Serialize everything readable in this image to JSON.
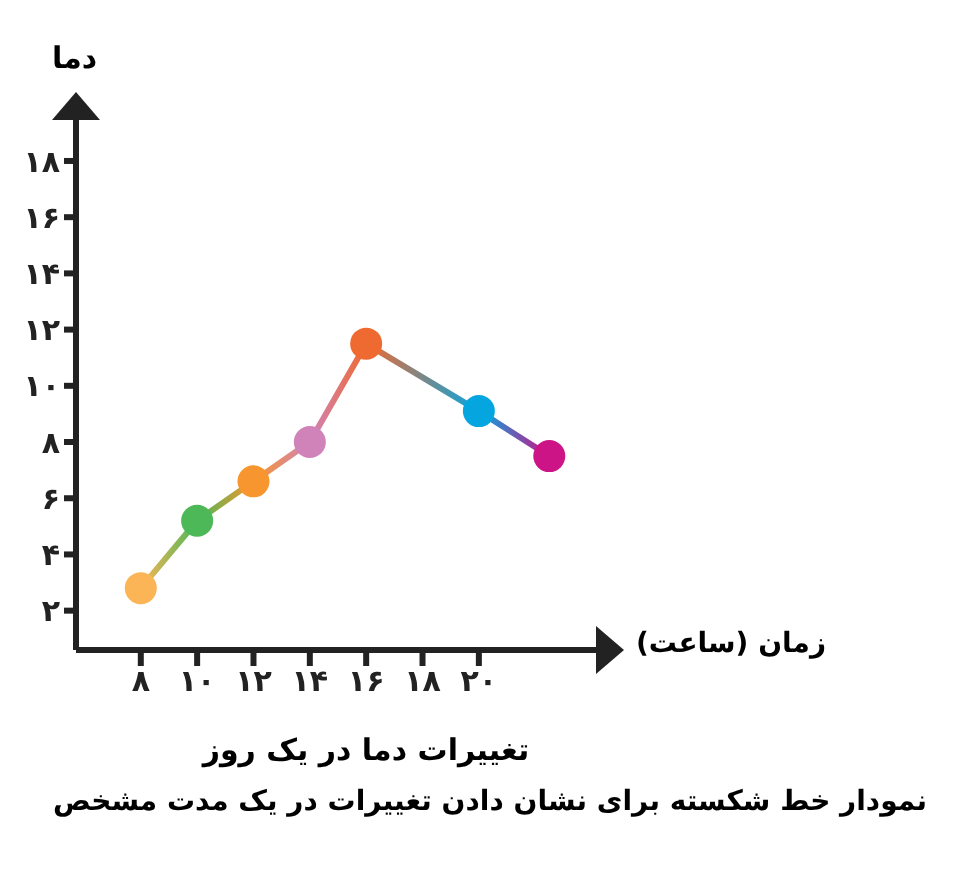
{
  "chart_data": {
    "type": "line",
    "title": "تغییرات دما در یک روز",
    "subtitle": "نمودار خط شکسته برای نشان دادن تغییرات در یک مدت مشخص",
    "xlabel": "زمان (ساعت)",
    "ylabel": "دما",
    "x": [
      8,
      10,
      12,
      14,
      16,
      20,
      22.5
    ],
    "series": [
      {
        "values": [
          2.8,
          5.2,
          6.6,
          8,
          11.5,
          9.1,
          7.5
        ],
        "colors": [
          "#fbb556",
          "#4cb857",
          "#f7962e",
          "#d083b8",
          "#ef6a30",
          "#05a6e0",
          "#cc1487"
        ]
      }
    ],
    "xlim": [
      5.7,
      24.3
    ],
    "xticks": [
      {
        "value": 8,
        "label": "۸"
      },
      {
        "value": 10,
        "label": "۱۰"
      },
      {
        "value": 12,
        "label": "۱۲"
      },
      {
        "value": 14,
        "label": "۱۴"
      },
      {
        "value": 16,
        "label": "۱۶"
      },
      {
        "value": 18,
        "label": "۱۸"
      },
      {
        "value": 20,
        "label": "۲۰"
      }
    ],
    "ylim": [
      0.6,
      19.6
    ],
    "yticks": [
      {
        "value": 2,
        "label": "۲"
      },
      {
        "value": 4,
        "label": "۴"
      },
      {
        "value": 6,
        "label": "۶"
      },
      {
        "value": 8,
        "label": "۸"
      },
      {
        "value": 10,
        "label": "۱۰"
      },
      {
        "value": 12,
        "label": "۱۲"
      },
      {
        "value": 14,
        "label": "۱۴"
      },
      {
        "value": 16,
        "label": "۱۶"
      },
      {
        "value": 18,
        "label": "۱۸"
      }
    ],
    "grid": false,
    "marker": "circle",
    "line_style": "solid"
  }
}
